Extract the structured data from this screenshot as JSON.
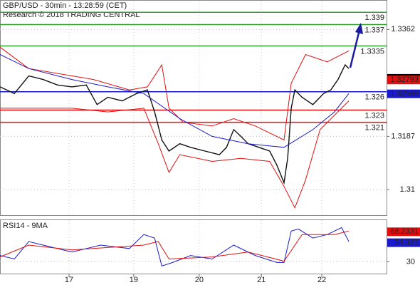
{
  "chart_data": [
    {
      "type": "line",
      "title": "GBP/USD - 30min - 13:28:59 (CET)",
      "subtitle": "Research © 2018 TRADING CENTRAL",
      "xlim": [
        0,
        107.5
      ],
      "xticks": [
        {
          "value": 19.2,
          "label": "17"
        },
        {
          "value": 37.2,
          "label": "19"
        },
        {
          "value": 55.4,
          "label": "20"
        },
        {
          "value": 72.7,
          "label": "21"
        },
        {
          "value": 89.5,
          "label": "22"
        }
      ],
      "ylim": [
        1.3058,
        1.3409
      ],
      "yticks": [
        1.3362,
        1.3187,
        1.31
      ],
      "grid": true,
      "series": [
        {
          "color": "#111111",
          "x": [
            0,
            4,
            8,
            12,
            16,
            20,
            24,
            27,
            30,
            34,
            38,
            41,
            43,
            45,
            47,
            50,
            53,
            57,
            61,
            63,
            65,
            67,
            69,
            72,
            75,
            77,
            79,
            80,
            81,
            82,
            84,
            87,
            90,
            92,
            94,
            96,
            97
          ],
          "values": [
            1.3268,
            1.3257,
            1.3286,
            1.328,
            1.3271,
            1.3268,
            1.3271,
            1.3239,
            1.3251,
            1.3245,
            1.3257,
            1.3263,
            1.3227,
            1.3181,
            1.3163,
            1.3175,
            1.3169,
            1.3163,
            1.3157,
            1.3169,
            1.3198,
            1.3187,
            1.3175,
            1.3169,
            1.3163,
            1.314,
            1.3111,
            1.3151,
            1.3233,
            1.3263,
            1.3251,
            1.3239,
            1.3257,
            1.3263,
            1.328,
            1.3304,
            1.3298
          ]
        },
        {
          "color": "#e01010",
          "x": [
            0,
            8,
            20,
            26,
            36,
            41,
            45,
            47,
            51,
            59,
            65,
            71,
            79,
            81,
            85,
            91,
            97
          ],
          "values": [
            1.3333,
            1.3298,
            1.3286,
            1.328,
            1.3263,
            1.3268,
            1.3304,
            1.3233,
            1.321,
            1.3204,
            1.3216,
            1.3204,
            1.3181,
            1.3274,
            1.3321,
            1.3309,
            1.3327
          ]
        },
        {
          "color": "#e01010",
          "x": [
            0,
            8,
            20,
            30,
            40,
            44,
            47,
            50,
            59,
            67,
            75,
            79,
            82,
            85,
            89,
            97
          ],
          "values": [
            1.3233,
            1.3233,
            1.3233,
            1.3227,
            1.3233,
            1.3175,
            1.3128,
            1.3157,
            1.3146,
            1.3151,
            1.3146,
            1.3105,
            1.307,
            1.3116,
            1.3198,
            1.3245
          ]
        },
        {
          "color": "#1a1acc",
          "x": [
            0,
            8,
            20,
            30,
            40,
            50,
            59,
            69,
            79,
            87,
            93,
            97
          ],
          "values": [
            1.3321,
            1.3298,
            1.328,
            1.3268,
            1.3257,
            1.3216,
            1.3187,
            1.3175,
            1.3169,
            1.3198,
            1.3227,
            1.3257
          ]
        }
      ],
      "levels": [
        {
          "value": 1.339,
          "color": "#2e9e2e"
        },
        {
          "value": 1.337,
          "color": "#2e9e2e"
        },
        {
          "value": 1.3335,
          "color": "#2e9e2e"
        },
        {
          "value": 1.326,
          "color": "#1a1acc"
        },
        {
          "value": 1.323,
          "color": "#e01010"
        },
        {
          "value": 1.321,
          "color": "#e01010"
        }
      ],
      "markers": [
        {
          "value": 1.3282,
          "color": "#000000"
        },
        {
          "value": 1.32793,
          "color": "#e01010"
        },
        {
          "value": 1.32566,
          "color": "#1a1acc"
        }
      ]
    },
    {
      "type": "line",
      "title": "RSI14 - 9MA",
      "xlim": [
        0,
        107.5
      ],
      "ylim": [
        15,
        83
      ],
      "yticks": [
        30
      ],
      "series": [
        {
          "color": "#1a1acc",
          "x": [
            0,
            4,
            8,
            12,
            20,
            28,
            36,
            40,
            43,
            45,
            48,
            53,
            59,
            65,
            71,
            77,
            79,
            81,
            83,
            87,
            91,
            95,
            97
          ],
          "values": [
            38.0,
            33.6,
            55.8,
            51.3,
            42.5,
            51.3,
            46.9,
            64.7,
            60.2,
            24.7,
            29.1,
            38.0,
            33.6,
            51.3,
            38.0,
            29.1,
            29.1,
            69.1,
            71.8,
            60.2,
            64.7,
            73.6,
            55.8
          ]
        },
        {
          "color": "#e01010",
          "x": [
            0,
            8,
            20,
            40,
            44,
            47,
            59,
            69,
            79,
            84,
            93,
            97
          ],
          "values": [
            36.2,
            51.3,
            45.1,
            51.3,
            55.8,
            33.6,
            36.2,
            42.5,
            30.9,
            64.7,
            64.7,
            69.1
          ]
        }
      ],
      "markers": [
        {
          "value": 68.2331,
          "color": "#e01010"
        },
        {
          "value": 54.327,
          "color": "#1a1acc"
        }
      ]
    }
  ]
}
